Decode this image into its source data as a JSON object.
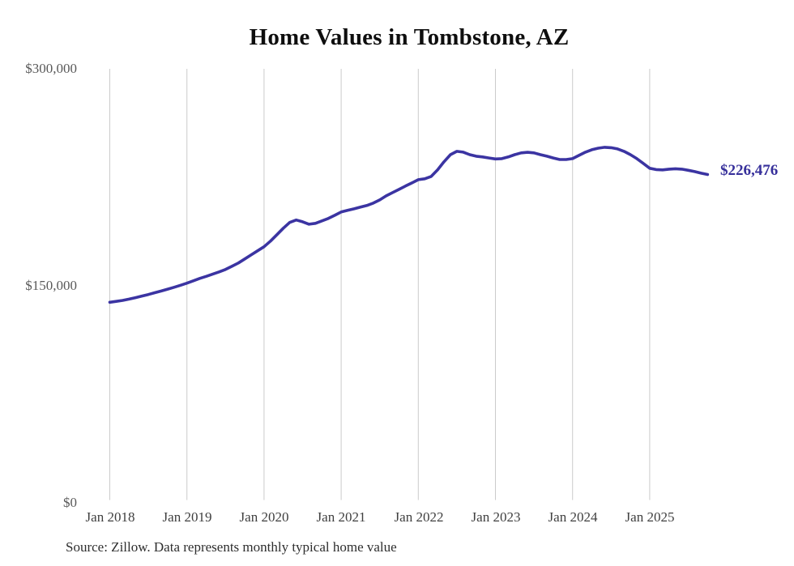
{
  "chart_data": {
    "type": "line",
    "title": "Home Values in Tombstone, AZ",
    "unit": "USD",
    "legend": "none",
    "grid": "vertical-only",
    "ylim": [
      0,
      300000
    ],
    "y_tick_labels": [
      "$300,000",
      "$150,000",
      "$0"
    ],
    "x_tick_labels": [
      "Jan 2018",
      "Jan 2019",
      "Jan 2020",
      "Jan 2021",
      "Jan 2022",
      "Jan 2023",
      "Jan 2024",
      "Jan 2025"
    ],
    "end_label": "$226,476",
    "end_value": 226476,
    "line_color": "#3b34a2",
    "grid_color": "#cbcbcb",
    "x": [
      "2018-01",
      "2018-02",
      "2018-03",
      "2018-04",
      "2018-05",
      "2018-06",
      "2018-07",
      "2018-08",
      "2018-09",
      "2018-10",
      "2018-11",
      "2018-12",
      "2019-01",
      "2019-02",
      "2019-03",
      "2019-04",
      "2019-05",
      "2019-06",
      "2019-07",
      "2019-08",
      "2019-09",
      "2019-10",
      "2019-11",
      "2019-12",
      "2020-01",
      "2020-02",
      "2020-03",
      "2020-04",
      "2020-05",
      "2020-06",
      "2020-07",
      "2020-08",
      "2020-09",
      "2020-10",
      "2020-11",
      "2020-12",
      "2021-01",
      "2021-02",
      "2021-03",
      "2021-04",
      "2021-05",
      "2021-06",
      "2021-07",
      "2021-08",
      "2021-09",
      "2021-10",
      "2021-11",
      "2021-12",
      "2022-01",
      "2022-02",
      "2022-03",
      "2022-04",
      "2022-05",
      "2022-06",
      "2022-07",
      "2022-08",
      "2022-09",
      "2022-10",
      "2022-11",
      "2022-12",
      "2023-01",
      "2023-02",
      "2023-03",
      "2023-04",
      "2023-05",
      "2023-06",
      "2023-07",
      "2023-08",
      "2023-09",
      "2023-10",
      "2023-11",
      "2023-12",
      "2024-01",
      "2024-02",
      "2024-03",
      "2024-04",
      "2024-05",
      "2024-06",
      "2024-07",
      "2024-08",
      "2024-09",
      "2024-10",
      "2024-11",
      "2024-12",
      "2025-01",
      "2025-02",
      "2025-03",
      "2025-04",
      "2025-05",
      "2025-06",
      "2025-07",
      "2025-08",
      "2025-09",
      "2025-10"
    ],
    "values": [
      137600,
      138200,
      138900,
      139800,
      140800,
      141900,
      143000,
      144200,
      145400,
      146700,
      148000,
      149400,
      150900,
      152500,
      154200,
      155600,
      157100,
      158700,
      160400,
      162600,
      164900,
      167700,
      170600,
      173400,
      176200,
      180100,
      184600,
      189100,
      193100,
      194800,
      193600,
      191900,
      192500,
      194200,
      195900,
      198100,
      200400,
      201500,
      202600,
      203800,
      204900,
      206600,
      208800,
      211600,
      213900,
      216100,
      218400,
      220600,
      222900,
      223500,
      225100,
      229700,
      235300,
      240300,
      242600,
      242000,
      240300,
      239200,
      238700,
      238000,
      237300,
      237500,
      238700,
      240300,
      241500,
      241900,
      241500,
      240300,
      239200,
      238000,
      236900,
      236900,
      237500,
      239800,
      242000,
      243700,
      244800,
      245400,
      245100,
      244300,
      242600,
      240300,
      237500,
      234200,
      230800,
      229900,
      229700,
      230200,
      230500,
      230200,
      229400,
      228500,
      227400,
      226476
    ]
  },
  "footer": {
    "source": "Source: Zillow. Data represents monthly typical home value"
  }
}
